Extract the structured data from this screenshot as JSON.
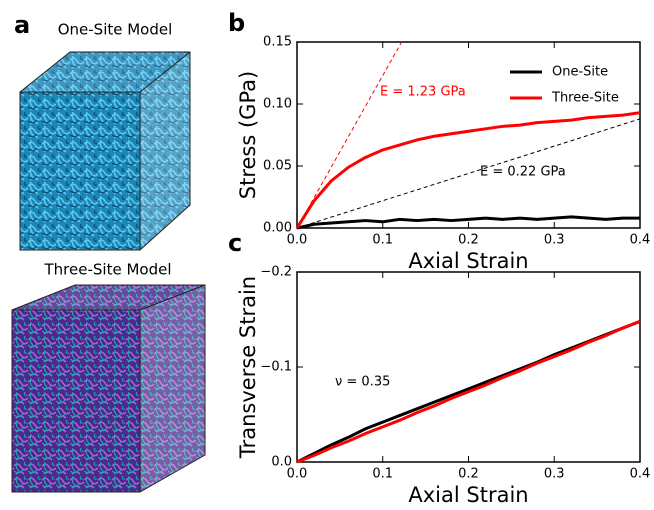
{
  "panel_a": {
    "panel_label": "a",
    "top_title": "One-Site Model",
    "bottom_title": "Three-Site Model"
  },
  "chart_data": [
    {
      "type": "line",
      "panel_label": "b",
      "x_label": "Axial Strain",
      "y_label": "Stress (GPa)",
      "x": [
        0,
        0.02,
        0.04,
        0.06,
        0.08,
        0.1,
        0.12,
        0.14,
        0.16,
        0.18,
        0.2,
        0.22,
        0.24,
        0.26,
        0.28,
        0.3,
        0.32,
        0.34,
        0.36,
        0.38,
        0.4
      ],
      "series": [
        {
          "name": "One-Site",
          "color": "#000000",
          "values": [
            0,
            0.003,
            0.004,
            0.005,
            0.006,
            0.005,
            0.007,
            0.006,
            0.007,
            0.006,
            0.007,
            0.008,
            0.007,
            0.008,
            0.007,
            0.008,
            0.009,
            0.008,
            0.007,
            0.008,
            0.008
          ]
        },
        {
          "name": "Three-Site",
          "color": "#ff0000",
          "values": [
            0,
            0.022,
            0.038,
            0.049,
            0.057,
            0.063,
            0.067,
            0.071,
            0.074,
            0.076,
            0.078,
            0.08,
            0.082,
            0.083,
            0.085,
            0.086,
            0.087,
            0.089,
            0.09,
            0.091,
            0.093
          ]
        }
      ],
      "reference_lines": [
        {
          "label": "E = 1.23 GPa",
          "color": "#ff0000",
          "x": [
            0,
            0.122
          ],
          "values": [
            0,
            0.15
          ]
        },
        {
          "label": "E = 0.22 GPa",
          "color": "#000000",
          "x": [
            0,
            0.4
          ],
          "values": [
            0,
            0.088
          ]
        }
      ],
      "xlim": [
        0,
        0.4
      ],
      "xticks": [
        {
          "value": 0,
          "label": "0.0"
        },
        0.1,
        0.2,
        0.3,
        0.4
      ],
      "ylim": [
        0,
        0.15
      ],
      "yticks": [
        {
          "value": 0,
          "label": "0.00"
        },
        0.05,
        {
          "value": 0.1,
          "label": "0.10"
        },
        0.15
      ],
      "legend": "upper right"
    },
    {
      "type": "line",
      "panel_label": "c",
      "x_label": "Axial Strain",
      "y_label": "Transverse Strain",
      "x": [
        0,
        0.02,
        0.04,
        0.06,
        0.08,
        0.1,
        0.12,
        0.14,
        0.16,
        0.18,
        0.2,
        0.22,
        0.24,
        0.26,
        0.28,
        0.3,
        0.32,
        0.34,
        0.36,
        0.38,
        0.4
      ],
      "series": [
        {
          "color": "#000000",
          "values": [
            0,
            -0.009,
            -0.018,
            -0.026,
            -0.035,
            -0.042,
            -0.049,
            -0.056,
            -0.063,
            -0.07,
            -0.077,
            -0.084,
            -0.091,
            -0.098,
            -0.105,
            -0.113,
            -0.12,
            -0.127,
            -0.134,
            -0.141,
            -0.148
          ]
        },
        {
          "color": "#ff0000",
          "values": [
            0,
            -0.007,
            -0.015,
            -0.022,
            -0.03,
            -0.037,
            -0.044,
            -0.052,
            -0.059,
            -0.067,
            -0.074,
            -0.081,
            -0.089,
            -0.096,
            -0.104,
            -0.111,
            -0.118,
            -0.126,
            -0.133,
            -0.141,
            -0.148
          ]
        }
      ],
      "annotation": "ν = 0.35",
      "xlim": [
        0,
        0.4
      ],
      "xticks": [
        {
          "value": 0,
          "label": "0.0"
        },
        0.1,
        0.2,
        0.3,
        0.4
      ],
      "ylim": [
        0,
        -0.2
      ],
      "yticks": [
        {
          "value": 0,
          "label": "0.0"
        },
        {
          "value": -0.1,
          "label": "−0.1"
        },
        {
          "value": -0.2,
          "label": "−0.2"
        }
      ]
    }
  ]
}
